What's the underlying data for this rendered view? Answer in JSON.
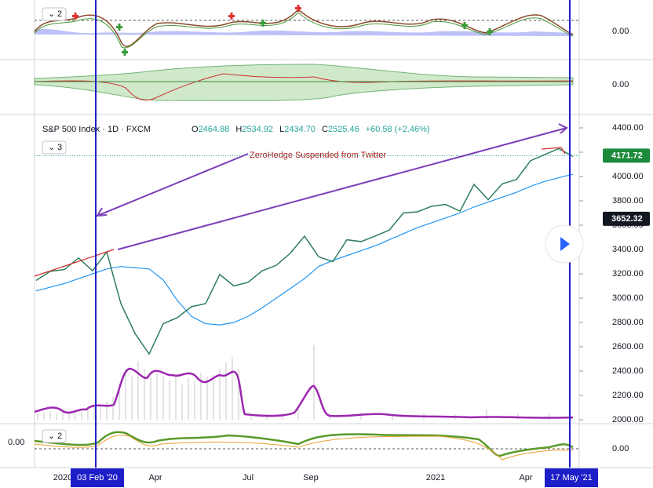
{
  "indicator_panes": [
    {
      "counter": "2",
      "zero_label": "0.00"
    },
    {
      "zero_label": "0.00"
    }
  ],
  "main_pane": {
    "symbol": "S&P 500 Index",
    "interval": "1D",
    "exchange": "FXCM",
    "ohlc": [
      {
        "key": "O",
        "value": "2464.88"
      },
      {
        "key": "H",
        "value": "2534.92"
      },
      {
        "key": "L",
        "value": "2434.70"
      },
      {
        "key": "C",
        "value": "2525.46"
      }
    ],
    "change": "+60.58 (+2.46%)",
    "counter": "3",
    "annotation": "ZeroHedge Suspended from Twitter",
    "price_ticks": [
      {
        "value": 2000,
        "label": "2000.00"
      },
      {
        "value": 2200,
        "label": "2200.00"
      },
      {
        "value": 2400,
        "label": "2400.00"
      },
      {
        "value": 2600,
        "label": "2600.00"
      },
      {
        "value": 2800,
        "label": "2800.00"
      },
      {
        "value": 3000,
        "label": "3000.00"
      },
      {
        "value": 3200,
        "label": "3200.00"
      },
      {
        "value": 3400,
        "label": "3400.00"
      },
      {
        "value": 3600,
        "label": "3600.00"
      },
      {
        "value": 3800,
        "label": "3800.00"
      },
      {
        "value": 4000,
        "label": "4000.00"
      },
      {
        "value": 4200,
        "label": "4200.00"
      },
      {
        "value": 4400,
        "label": "4400.00"
      }
    ],
    "price_range": [
      2000,
      4400
    ],
    "last_price": {
      "value": 4171.72,
      "label": "4171.72"
    },
    "crosshair_price": {
      "value": 3652.32,
      "label": "3652.32"
    },
    "close_series": [
      3145,
      3220,
      3235,
      3330,
      3225,
      3380,
      2955,
      2710,
      2540,
      2790,
      2840,
      2930,
      2955,
      3195,
      3100,
      3130,
      3225,
      3270,
      3370,
      3510,
      3340,
      3300,
      3480,
      3465,
      3510,
      3560,
      3700,
      3710,
      3756,
      3770,
      3715,
      3935,
      3810,
      3940,
      3975,
      4130,
      4180,
      4230,
      4165
    ],
    "ma_series": [
      3060,
      3090,
      3120,
      3160,
      3200,
      3240,
      3260,
      3250,
      3240,
      3150,
      2980,
      2850,
      2790,
      2780,
      2800,
      2850,
      2920,
      3000,
      3080,
      3160,
      3260,
      3310,
      3350,
      3390,
      3430,
      3480,
      3530,
      3580,
      3620,
      3660,
      3700,
      3750,
      3790,
      3830,
      3870,
      3920,
      3960,
      3990,
      4020
    ]
  },
  "bottom_pane": {
    "counter": "2",
    "zero_label": "0.00",
    "left_label": "0.00"
  },
  "time_axis": {
    "labels": [
      "2020",
      "Apr",
      "Jul",
      "Sep",
      "2021",
      "Apr"
    ],
    "start_marker": "03 Feb '20",
    "end_marker": "17 May '21"
  }
}
